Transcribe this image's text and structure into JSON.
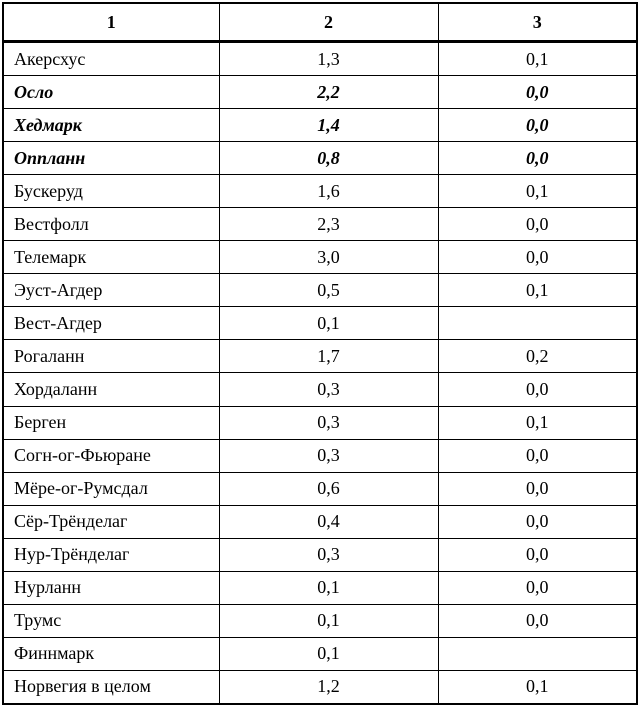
{
  "table": {
    "headers": [
      "1",
      "2",
      "3"
    ],
    "rows": [
      {
        "name": "Акерсхус",
        "col2": "1,3",
        "col3": "0,1",
        "emphasis": false
      },
      {
        "name": "Осло",
        "col2": "2,2",
        "col3": "0,0",
        "emphasis": true
      },
      {
        "name": "Хедмарк",
        "col2": "1,4",
        "col3": "0,0",
        "emphasis": true
      },
      {
        "name": "Оппланн",
        "col2": "0,8",
        "col3": "0,0",
        "emphasis": true
      },
      {
        "name": "Бускеруд",
        "col2": "1,6",
        "col3": "0,1",
        "emphasis": false
      },
      {
        "name": "Вестфолл",
        "col2": "2,3",
        "col3": "0,0",
        "emphasis": false
      },
      {
        "name": "Телемарк",
        "col2": "3,0",
        "col3": "0,0",
        "emphasis": false
      },
      {
        "name": "Эуст-Агдер",
        "col2": "0,5",
        "col3": "0,1",
        "emphasis": false
      },
      {
        "name": "Вест-Агдер",
        "col2": "0,1",
        "col3": "",
        "emphasis": false
      },
      {
        "name": "Рогаланн",
        "col2": "1,7",
        "col3": "0,2",
        "emphasis": false
      },
      {
        "name": "Хордаланн",
        "col2": "0,3",
        "col3": "0,0",
        "emphasis": false
      },
      {
        "name": "Берген",
        "col2": "0,3",
        "col3": "0,1",
        "emphasis": false
      },
      {
        "name": "Согн-ог-Фьюране",
        "col2": "0,3",
        "col3": "0,0",
        "emphasis": false
      },
      {
        "name": "Мёре-ог-Румсдал",
        "col2": "0,6",
        "col3": "0,0",
        "emphasis": false
      },
      {
        "name": "Сёр-Трёнделаг",
        "col2": "0,4",
        "col3": "0,0",
        "emphasis": false
      },
      {
        "name": "Нур-Трёнделаг",
        "col2": "0,3",
        "col3": "0,0",
        "emphasis": false
      },
      {
        "name": "Нурланн",
        "col2": "0,1",
        "col3": "0,0",
        "emphasis": false
      },
      {
        "name": "Трумс",
        "col2": "0,1",
        "col3": "0,0",
        "emphasis": false
      },
      {
        "name": "Финнмарк",
        "col2": "0,1",
        "col3": "",
        "emphasis": false
      },
      {
        "name": "Норвегия в целом",
        "col2": "1,2",
        "col3": "0,1",
        "emphasis": false
      }
    ],
    "colors": {
      "border": "#000000",
      "text": "#000000",
      "background": "#ffffff"
    }
  }
}
